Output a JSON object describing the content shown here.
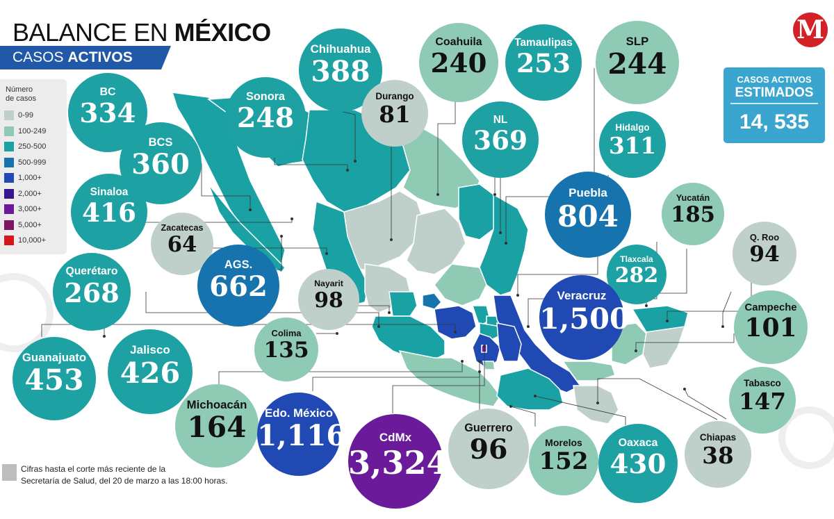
{
  "header": {
    "title_light": "BALANCE EN ",
    "title_bold": "MÉXICO",
    "subtitle_light": "CASOS ",
    "subtitle_bold": "ACTIVOS",
    "logo_letter": "M"
  },
  "legend": {
    "title_line1": "Número",
    "title_line2": "de casos",
    "items": [
      {
        "label": "0-99",
        "color": "#bfcfca"
      },
      {
        "label": "100-249",
        "color": "#8fcab4"
      },
      {
        "label": "250-500",
        "color": "#1da1a3"
      },
      {
        "label": "500-999",
        "color": "#1673ae"
      },
      {
        "label": "1,000+",
        "color": "#2149b4"
      },
      {
        "label": "2,000+",
        "color": "#35168e"
      },
      {
        "label": "3,000+",
        "color": "#6b1b9a"
      },
      {
        "label": "5,000+",
        "color": "#7e1660"
      },
      {
        "label": "10,000+",
        "color": "#d3171d"
      }
    ]
  },
  "estimate": {
    "line1": "CASOS ACTIVOS",
    "line2": "ESTIMADOS",
    "value": "14, 535"
  },
  "footnote": {
    "line1": "Cifras hasta el corte más reciente de la",
    "line2": "Secretaría de Salud, del 20 de marzo a las 18:00 horas."
  },
  "states": [
    {
      "name": "Chihuahua",
      "value": "388",
      "color": "#1da1a3"
    },
    {
      "name": "Coahuila",
      "value": "240",
      "color": "#8fcab4"
    },
    {
      "name": "Tamaulipas",
      "value": "253",
      "color": "#1da1a3"
    },
    {
      "name": "SLP",
      "value": "244",
      "color": "#8fcab4"
    },
    {
      "name": "BC",
      "value": "334",
      "color": "#1da1a3"
    },
    {
      "name": "Sonora",
      "value": "248",
      "color": "#1da1a3"
    },
    {
      "name": "Durango",
      "value": "81",
      "color": "#bfcfca"
    },
    {
      "name": "NL",
      "value": "369",
      "color": "#1da1a3"
    },
    {
      "name": "Hidalgo",
      "value": "311",
      "color": "#1da1a3"
    },
    {
      "name": "BCS",
      "value": "360",
      "color": "#1da1a3"
    },
    {
      "name": "Puebla",
      "value": "804",
      "color": "#1673ae"
    },
    {
      "name": "Yucatán",
      "value": "185",
      "color": "#8fcab4"
    },
    {
      "name": "Sinaloa",
      "value": "416",
      "color": "#1da1a3"
    },
    {
      "name": "Zacatecas",
      "value": "64",
      "color": "#bfcfca"
    },
    {
      "name": "Q. Roo",
      "value": "94",
      "color": "#bfcfca"
    },
    {
      "name": "Tlaxcala",
      "value": "282",
      "color": "#1da1a3"
    },
    {
      "name": "AGS.",
      "value": "662",
      "color": "#1673ae"
    },
    {
      "name": "Querétaro",
      "value": "268",
      "color": "#1da1a3"
    },
    {
      "name": "Nayarit",
      "value": "98",
      "color": "#bfcfca"
    },
    {
      "name": "Veracruz",
      "value": "1,500",
      "color": "#2149b4"
    },
    {
      "name": "Campeche",
      "value": "101",
      "color": "#8fcab4"
    },
    {
      "name": "Colima",
      "value": "135",
      "color": "#8fcab4"
    },
    {
      "name": "Guanajuato",
      "value": "453",
      "color": "#1da1a3"
    },
    {
      "name": "Jalisco",
      "value": "426",
      "color": "#1da1a3"
    },
    {
      "name": "Tabasco",
      "value": "147",
      "color": "#8fcab4"
    },
    {
      "name": "Michoacán",
      "value": "164",
      "color": "#8fcab4"
    },
    {
      "name": "Edo. México",
      "value": "1,116",
      "color": "#2149b4"
    },
    {
      "name": "CdMx",
      "value": "3,324",
      "color": "#6b1b9a"
    },
    {
      "name": "Guerrero",
      "value": "96",
      "color": "#bfcfca"
    },
    {
      "name": "Morelos",
      "value": "152",
      "color": "#8fcab4"
    },
    {
      "name": "Oaxaca",
      "value": "430",
      "color": "#1da1a3"
    },
    {
      "name": "Chiapas",
      "value": "38",
      "color": "#bfcfca"
    }
  ]
}
